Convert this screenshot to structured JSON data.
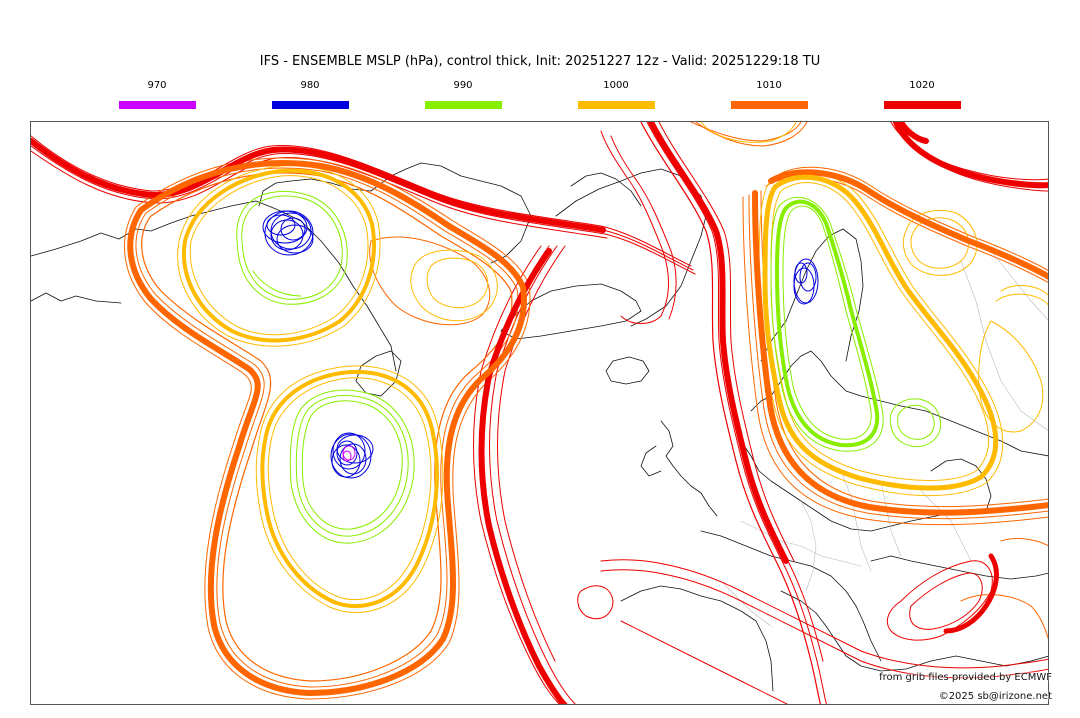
{
  "header": {
    "title": "IFS - ENSEMBLE MSLP (hPa), control thick, Init: 20251227 12z - Valid: 20251229:18 TU"
  },
  "legend": [
    {
      "label": "970",
      "color": "#cc00ff"
    },
    {
      "label": "980",
      "color": "#0000dd"
    },
    {
      "label": "990",
      "color": "#88ee00"
    },
    {
      "label": "1000",
      "color": "#ffbb00"
    },
    {
      "label": "1010",
      "color": "#ff6600"
    },
    {
      "label": "1020",
      "color": "#ee0000"
    }
  ],
  "credits": {
    "source": "from grib files provided by ECMWF",
    "copyright": "©2025 sb@irizone.net"
  }
}
